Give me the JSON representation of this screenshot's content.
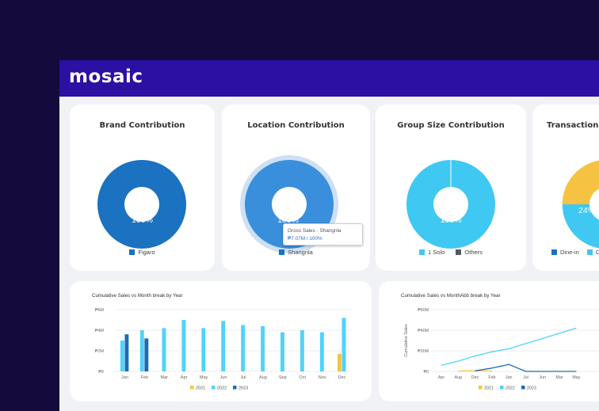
{
  "app": {
    "logo": "mosaic"
  },
  "cards": {
    "brand": {
      "title": "Brand Contribution",
      "value_label": "100%",
      "legend": [
        {
          "label": "Figaro",
          "color": "#1a72c0"
        }
      ]
    },
    "location": {
      "title": "Location Contribution",
      "value_label": "100%",
      "legend": [
        {
          "label": "Shangrila",
          "color": "#1a72c0"
        }
      ],
      "tooltip": {
        "line1": "Gross Sales · Shangrila",
        "line2": "₱7.07M / 100%"
      }
    },
    "group_size": {
      "title": "Group Size Contribution",
      "value_label": "100%",
      "legend": [
        {
          "label": "1 Solo",
          "color": "#3fc8f2"
        },
        {
          "label": "Others",
          "color": "#555a66"
        }
      ]
    },
    "transaction": {
      "title": "Transaction T",
      "value_label": "24%",
      "legend": [
        {
          "label": "Dine-in",
          "color": "#1a72c0"
        },
        {
          "label": "C",
          "color": "#3fc8f2"
        }
      ]
    }
  },
  "colors": {
    "y2021": "#f5c242",
    "y2022": "#4fd3fb",
    "y2023": "#1a6cb5",
    "topbar": "#2c0fa3",
    "background": "#150a3c"
  },
  "chart_data": [
    {
      "type": "bar",
      "title": "Cumulative Sales vs Month break by Year",
      "categories": [
        "Jan",
        "Feb",
        "Mar",
        "Apr",
        "May",
        "Jun",
        "Jul",
        "Aug",
        "Sep",
        "Oct",
        "Nov",
        "Dec"
      ],
      "series": [
        {
          "name": "2021",
          "values": [
            null,
            null,
            null,
            null,
            null,
            null,
            null,
            null,
            null,
            null,
            null,
            1.7
          ]
        },
        {
          "name": "2022",
          "values": [
            3.0,
            4.0,
            4.2,
            5.0,
            4.2,
            4.9,
            4.5,
            4.4,
            3.8,
            4.0,
            3.8,
            5.2
          ]
        },
        {
          "name": "2023",
          "values": [
            3.6,
            3.2,
            null,
            null,
            null,
            null,
            null,
            null,
            null,
            null,
            null,
            null
          ]
        }
      ],
      "yticks": [
        "₱0",
        "₱2M",
        "₱4M",
        "₱6M"
      ],
      "ylim": [
        0,
        6
      ],
      "legend_position": "bottom",
      "xlabel": "",
      "ylabel": ""
    },
    {
      "type": "line",
      "title": "Cumulative Sales vs MonthAbb break by Year",
      "x": [
        "Apr",
        "Aug",
        "Dec",
        "Feb",
        "Jan",
        "Jul",
        "Jun",
        "Mar",
        "May"
      ],
      "series": [
        {
          "name": "2021",
          "values": [
            null,
            0.3,
            0.8,
            0.3,
            null,
            null,
            null,
            null,
            null
          ]
        },
        {
          "name": "2022",
          "values": [
            6,
            10,
            15,
            19,
            22,
            27,
            32,
            37,
            42
          ]
        },
        {
          "name": "2023",
          "values": [
            null,
            null,
            0.5,
            3.2,
            6.8,
            0,
            0,
            0,
            0
          ]
        }
      ],
      "yticks": [
        "₱0",
        "₱20M",
        "₱40M",
        "₱60M"
      ],
      "ylim": [
        0,
        60
      ],
      "ylabel": "Cumulative Sales",
      "legend_position": "bottom",
      "xlabel": ""
    }
  ]
}
